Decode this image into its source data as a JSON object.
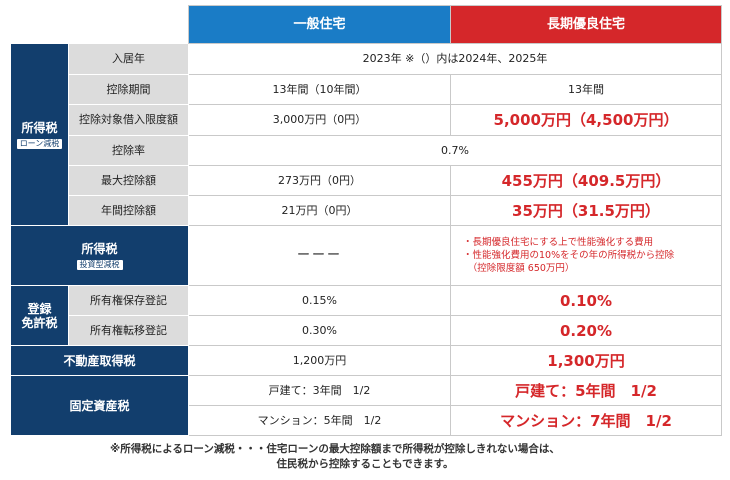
{
  "header": {
    "general": "一般住宅",
    "long_term": "長期優良住宅"
  },
  "income_tax_group": {
    "title": "所得税",
    "badge": "ローン減税"
  },
  "rows": {
    "move_in": {
      "label": "入居年",
      "value": "2023年 ※（）内は2024年、2025年"
    },
    "period": {
      "label": "控除期間",
      "general": "13年間（10年間）",
      "long_term": "13年間"
    },
    "loan_limit": {
      "label": "控除対象借入限度額",
      "general": "3,000万円（0円）",
      "long_term": "5,000万円（4,500万円）"
    },
    "rate": {
      "label": "控除率",
      "value": "0.7%"
    },
    "max_deduction": {
      "label": "最大控除額",
      "general": "273万円（0円）",
      "long_term": "455万円（409.5万円）"
    },
    "annual_deduction": {
      "label": "年間控除額",
      "general": "21万円（0円）",
      "long_term": "35万円（31.5万円）"
    }
  },
  "investment": {
    "title": "所得税",
    "badge": "投資型減税",
    "general": "ーーー",
    "long_term_lines": [
      "・長期優良住宅にする上で性能強化する費用",
      "・性能強化費用の10%をその年の所得税から控除",
      "　（控除限度額 650万円）"
    ]
  },
  "registration": {
    "title_line1": "登録",
    "title_line2": "免許税",
    "preservation": {
      "label": "所有権保存登記",
      "general": "0.15%",
      "long_term": "0.10%"
    },
    "transfer": {
      "label": "所有権転移登記",
      "general": "0.30%",
      "long_term": "0.20%"
    }
  },
  "acquisition_tax": {
    "title": "不動産取得税",
    "general": "1,200万円",
    "long_term": "1,300万円"
  },
  "property_tax": {
    "title": "固定資産税",
    "house": {
      "general": "戸建て：3年間　1/2",
      "long_term": "戸建て：5年間　1/2"
    },
    "mansion": {
      "general": "マンション：5年間　1/2",
      "long_term": "マンション：7年間　1/2"
    }
  },
  "footnote": {
    "line1": "※所得税によるローン減税・・・住宅ローンの最大控除額まで所得税が控除しきれない場合は、",
    "line2": "住民税から控除することもできます。"
  }
}
